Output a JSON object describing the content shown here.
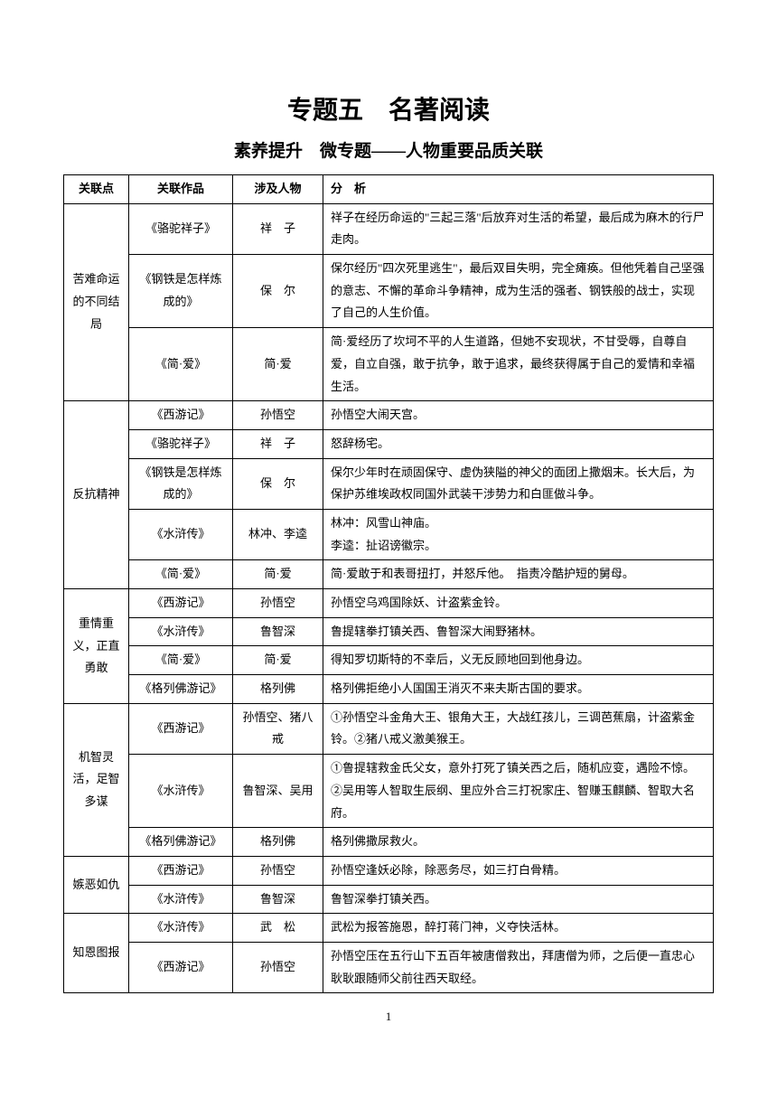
{
  "title_main": "专题五　名著阅读",
  "title_sub": "素养提升　微专题——人物重要品质关联",
  "headers": {
    "col1": "关联点",
    "col2": "关联作品",
    "col3": "涉及人物",
    "col4": "分　析"
  },
  "groups": [
    {
      "point": "苦难命运的不同结局",
      "rows": [
        {
          "work": "《骆驼祥子》",
          "char": "祥　子",
          "analysis": "祥子在经历命运的\"三起三落\"后放弃对生活的希望，最后成为麻木的行尸走肉。"
        },
        {
          "work": "《钢铁是怎样炼成的》",
          "char": "保　尔",
          "analysis": "保尔经历\"四次死里逃生\"，最后双目失明，完全瘫痪。但他凭着自己坚强的意志、不懈的革命斗争精神，成为生活的强者、钢铁般的战士，实现了自己的人生价值。"
        },
        {
          "work": "《简·爱》",
          "char": "简·爱",
          "analysis": "简·爱经历了坎坷不平的人生道路，但她不安现状，不甘受辱，自尊自爱，自立自强，敢于抗争，敢于追求，最终获得属于自己的爱情和幸福生活。"
        }
      ]
    },
    {
      "point": "反抗精神",
      "rows": [
        {
          "work": "《西游记》",
          "char": "孙悟空",
          "analysis": "孙悟空大闹天宫。"
        },
        {
          "work": "《骆驼祥子》",
          "char": "祥　子",
          "analysis": "怒辞杨宅。"
        },
        {
          "work": "《钢铁是怎样炼成的》",
          "char": "保　尔",
          "analysis": "保尔少年时在顽固保守、虚伪狭隘的神父的面团上撒烟末。长大后，为保护苏维埃政权同国外武装干涉势力和白匪做斗争。"
        },
        {
          "work": "《水浒传》",
          "char": "林冲、李逵",
          "analysis": "林冲：风雪山神庙。\n李逵：扯诏谤徽宗。"
        },
        {
          "work": "《简·爱》",
          "char": "简·爱",
          "analysis": "简·爱敢于和表哥扭打，并怒斥他。　指责冷酷护短的舅母。"
        }
      ]
    },
    {
      "point": "重情重义，正直勇敢",
      "rows": [
        {
          "work": "《西游记》",
          "char": "孙悟空",
          "analysis": "孙悟空乌鸡国除妖、计盗紫金铃。"
        },
        {
          "work": "《水浒传》",
          "char": "鲁智深",
          "analysis": "鲁提辖拳打镇关西、鲁智深大闹野猪林。"
        },
        {
          "work": "《简·爱》",
          "char": "简·爱",
          "analysis": "得知罗切斯特的不幸后，义无反顾地回到他身边。"
        },
        {
          "work": "《格列佛游记》",
          "char": "格列佛",
          "analysis": "格列佛拒绝小人国国王消灭不来夫斯古国的要求。"
        }
      ]
    },
    {
      "point": "机智灵活，足智多谋",
      "rows": [
        {
          "work": "《西游记》",
          "char": "孙悟空、猪八戒",
          "analysis": "①孙悟空斗金角大王、银角大王，大战红孩儿，三调芭蕉扇，计盗紫金铃。②猪八戒义激美猴王。"
        },
        {
          "work": "《水浒传》",
          "char": "鲁智深、吴用",
          "analysis": "①鲁提辖救金氏父女，意外打死了镇关西之后，随机应变，遇险不惊。②吴用等人智取生辰纲、里应外合三打祝家庄、智赚玉麒麟、智取大名府。"
        },
        {
          "work": "《格列佛游记》",
          "char": "格列佛",
          "analysis": "格列佛撒尿救火。"
        }
      ]
    },
    {
      "point": "嫉恶如仇",
      "rows": [
        {
          "work": "《西游记》",
          "char": "孙悟空",
          "analysis": "孙悟空逢妖必除，除恶务尽，如三打白骨精。"
        },
        {
          "work": "《水浒传》",
          "char": "鲁智深",
          "analysis": "鲁智深拳打镇关西。"
        }
      ]
    },
    {
      "point": "知恩图报",
      "rows": [
        {
          "work": "《水浒传》",
          "char": "武　松",
          "analysis": "武松为报答施恩，醉打蒋门神，义夺快活林。"
        },
        {
          "work": "《西游记》",
          "char": "孙悟空",
          "analysis": "孙悟空压在五行山下五百年被唐僧救出，拜唐僧为师，之后便一直忠心耿耿跟随师父前往西天取经。"
        }
      ]
    }
  ],
  "page_number": "1",
  "style": {
    "background_color": "#ffffff",
    "text_color": "#000000",
    "border_color": "#000000",
    "title_main_fontsize": 28,
    "title_sub_fontsize": 19,
    "body_fontsize": 13,
    "line_height": 1.9
  }
}
